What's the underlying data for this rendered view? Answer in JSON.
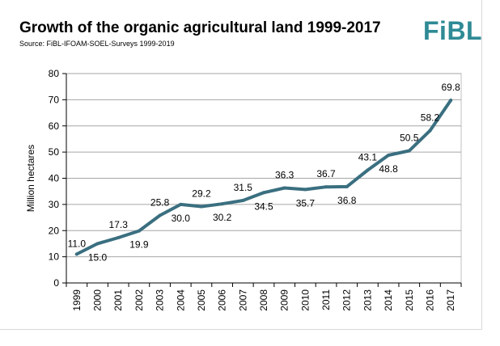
{
  "header": {
    "title": "Growth of the organic agricultural land 1999-2017",
    "source": "Source: FiBL-IFOAM-SOEL-Surveys 1999-2019",
    "logo": "FiBL",
    "logo_color": "#2f8a95"
  },
  "chart_data": {
    "type": "line",
    "title": "Growth of the organic agricultural land 1999-2017",
    "xlabel": "",
    "ylabel": "Million hectares",
    "ylim": [
      0,
      80
    ],
    "yticks": [
      0,
      10,
      20,
      30,
      40,
      50,
      60,
      70,
      80
    ],
    "grid": true,
    "line_color": "#3a6f80",
    "categories": [
      "1999",
      "2000",
      "2001",
      "2002",
      "2003",
      "2004",
      "2005",
      "2006",
      "2007",
      "2008",
      "2009",
      "2010",
      "2011",
      "2012",
      "2013",
      "2014",
      "2015",
      "2016",
      "2017"
    ],
    "values": [
      11.0,
      15.0,
      17.3,
      19.9,
      25.8,
      30.0,
      29.2,
      30.2,
      31.5,
      34.5,
      36.3,
      35.7,
      36.7,
      36.8,
      43.1,
      48.8,
      50.5,
      58.2,
      69.8
    ],
    "data_labels": [
      "11.0",
      "15.0",
      "17.3",
      "19.9",
      "25.8",
      "30.0",
      "29.2",
      "30.2",
      "31.5",
      "34.5",
      "36.3",
      "35.7",
      "36.7",
      "36.8",
      "43.1",
      "48.8",
      "50.5",
      "58.2",
      "69.8"
    ],
    "label_positions": [
      "left",
      "below",
      "above",
      "below",
      "above",
      "below",
      "above",
      "below",
      "above",
      "below",
      "above",
      "below",
      "above",
      "below",
      "above",
      "below",
      "above",
      "above",
      "above"
    ]
  }
}
